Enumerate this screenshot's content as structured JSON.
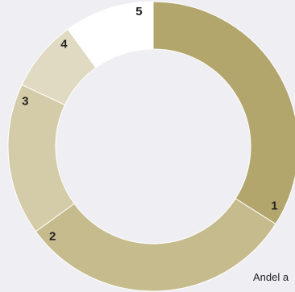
{
  "chart_data": {
    "type": "pie",
    "donut": true,
    "categories": [
      "1",
      "2",
      "3",
      "4",
      "5"
    ],
    "values": [
      34,
      31,
      17,
      8,
      10
    ],
    "colors": [
      "#b3a66d",
      "#c5bb8c",
      "#d4cca8",
      "#e0dac2",
      "#ffffff"
    ],
    "legend": "none"
  },
  "caption": "Andel a"
}
